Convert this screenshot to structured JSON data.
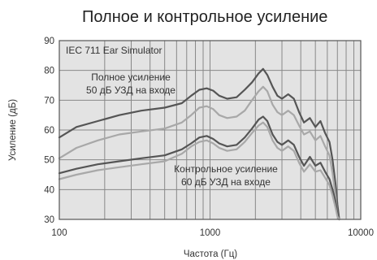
{
  "chart_data": {
    "type": "line",
    "title": "Полное и контрольное усиление",
    "xlabel": "Частота (Гц)",
    "ylabel": "Усиление (дБ)",
    "xscale": "log",
    "xlim": [
      100,
      10000
    ],
    "ylim": [
      30,
      90
    ],
    "x_ticks": [
      100,
      1000,
      10000
    ],
    "x_tick_labels": [
      "100",
      "1000",
      "10000"
    ],
    "y_ticks": [
      30,
      40,
      50,
      60,
      70,
      80,
      90
    ],
    "y_tick_labels": [
      "30",
      "40",
      "50",
      "60",
      "70",
      "80",
      "90"
    ],
    "grid": true,
    "background": "#e3e3e3",
    "colors": {
      "dark": "#555555",
      "light": "#a8a8a8",
      "grid": "#888888",
      "frame": "#555555"
    },
    "annotations": {
      "box_label": "IEC 711 Ear Simulator",
      "full_gain": [
        "Полное усиление",
        "50 дБ УЗД на входе"
      ],
      "reference_gain": [
        "Контрольное усиление",
        "60 дБ УЗД на входе"
      ]
    },
    "series": [
      {
        "color": "#555555",
        "x": [
          100,
          130,
          180,
          250,
          350,
          500,
          650,
          750,
          850,
          950,
          1050,
          1150,
          1300,
          1500,
          1700,
          1900,
          2100,
          2250,
          2400,
          2600,
          2800,
          3000,
          3300,
          3600,
          3900,
          4200,
          4600,
          5000,
          5400,
          5800,
          6200,
          6500,
          6800,
          7000,
          7200
        ],
        "y": [
          57.5,
          61,
          63,
          65,
          66.5,
          67.5,
          69,
          71.5,
          73.5,
          74,
          73.2,
          71.5,
          70.5,
          71,
          73.5,
          76,
          79,
          80.5,
          78.5,
          74.5,
          71.5,
          70.5,
          72,
          70.5,
          66,
          62.5,
          64,
          61,
          63,
          59,
          56,
          50,
          42,
          35,
          30
        ]
      },
      {
        "color": "#a8a8a8",
        "x": [
          100,
          130,
          180,
          250,
          350,
          500,
          650,
          750,
          850,
          950,
          1050,
          1150,
          1300,
          1500,
          1700,
          1900,
          2100,
          2250,
          2400,
          2600,
          2800,
          3000,
          3300,
          3600,
          3900,
          4200,
          4600,
          5000,
          5400,
          5800,
          6200,
          6500,
          6800,
          7000,
          7200
        ],
        "y": [
          50.5,
          54,
          56.5,
          58.5,
          59.5,
          60.5,
          62.5,
          65,
          67.5,
          68,
          67,
          65,
          64,
          64.5,
          66.5,
          70,
          73,
          74.5,
          73,
          68.5,
          66,
          65,
          66.5,
          65,
          61.5,
          58.5,
          59.5,
          56.5,
          58,
          54.5,
          51.5,
          45.5,
          38,
          32,
          30
        ]
      },
      {
        "color": "#555555",
        "x": [
          100,
          130,
          180,
          250,
          350,
          500,
          650,
          750,
          850,
          950,
          1050,
          1150,
          1300,
          1500,
          1700,
          1900,
          2100,
          2250,
          2400,
          2600,
          2800,
          3000,
          3300,
          3600,
          3900,
          4200,
          4600,
          5000,
          5400,
          5800,
          6200,
          6500,
          6800,
          7000,
          7200
        ],
        "y": [
          45.5,
          47,
          48.5,
          49.5,
          50.5,
          51.5,
          53.5,
          55.5,
          57.5,
          58,
          57,
          55.5,
          54.5,
          55,
          57.5,
          60.5,
          63.5,
          64.5,
          63,
          58.5,
          56,
          55,
          56.5,
          55,
          51,
          48,
          51,
          48,
          49,
          46,
          43.5,
          40,
          36,
          32,
          30
        ]
      },
      {
        "color": "#a8a8a8",
        "x": [
          100,
          130,
          180,
          250,
          350,
          500,
          650,
          750,
          850,
          950,
          1050,
          1150,
          1300,
          1500,
          1700,
          1900,
          2100,
          2250,
          2400,
          2600,
          2800,
          3000,
          3300,
          3600,
          3900,
          4200,
          4600,
          5000,
          5400,
          5800,
          6200,
          6500,
          6800,
          7000,
          7200
        ],
        "y": [
          43.5,
          45,
          46.5,
          47.5,
          48.5,
          49.5,
          52,
          54.5,
          56,
          56.5,
          55.5,
          54,
          53,
          53.5,
          56,
          59,
          61.5,
          62.5,
          61,
          56.5,
          54,
          53,
          54.5,
          53,
          49,
          46,
          48.5,
          46,
          46.5,
          44,
          41.5,
          38,
          34,
          31,
          30
        ]
      }
    ]
  }
}
